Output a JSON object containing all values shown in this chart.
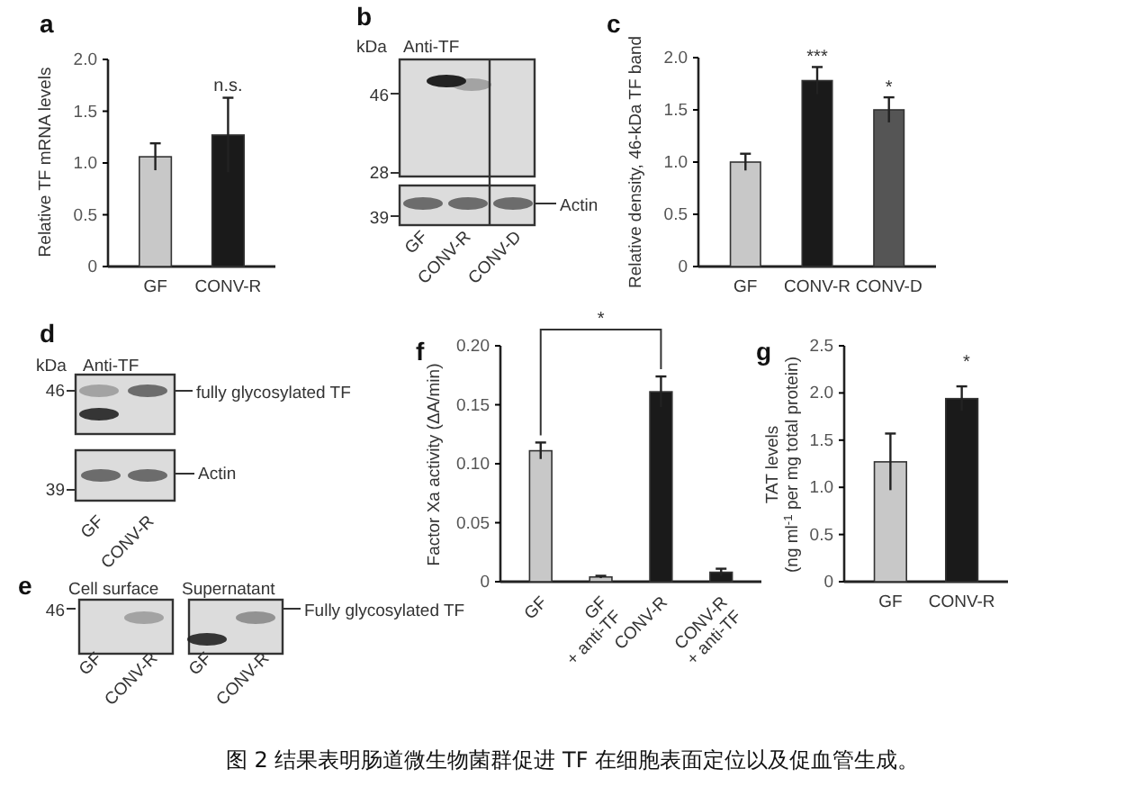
{
  "chart_data": [
    {
      "type": "bar",
      "title": "a",
      "ylabel": "Relative TF mRNA levels",
      "categories": [
        "GF",
        "CONV-R"
      ],
      "values": [
        1.06,
        1.27
      ],
      "errors": [
        0.13,
        0.36
      ],
      "colors": [
        "#c8c8c8",
        "#1a1a1a"
      ],
      "ylim": [
        0,
        2
      ],
      "yticks": [
        0,
        0.5,
        {
          "value": 1,
          "label": "1.0"
        },
        1.5,
        {
          "value": 2,
          "label": "2.0"
        }
      ],
      "annotations": [
        {
          "text": "n.s.",
          "x": "CONV-R",
          "y": 1.7
        }
      ]
    },
    {
      "type": "other",
      "title": "b",
      "annotations": [
        "kDa",
        "Anti-TF",
        "46",
        "28",
        "39",
        "Actin",
        "GF",
        "CONV-R",
        "CONV-D"
      ]
    },
    {
      "type": "bar",
      "title": "c",
      "ylabel": "Relative density, 46-kDa TF band",
      "categories": [
        "GF",
        "CONV-R",
        "CONV-D"
      ],
      "values": [
        1.0,
        1.78,
        1.5
      ],
      "errors": [
        0.08,
        0.13,
        0.12
      ],
      "colors": [
        "#c8c8c8",
        "#1a1a1a",
        "#555555"
      ],
      "ylim": [
        0,
        2
      ],
      "yticks": [
        0,
        {
          "value": 0.5,
          "label": "0.5"
        },
        {
          "value": 1,
          "label": "1.0"
        },
        {
          "value": 1.5,
          "label": "1.5"
        },
        {
          "value": 2,
          "label": "2.0"
        }
      ],
      "annotations": [
        {
          "text": "***",
          "x": "CONV-R",
          "y": 1.96
        },
        {
          "text": "*",
          "x": "CONV-D",
          "y": 1.66
        }
      ]
    },
    {
      "type": "other",
      "title": "d",
      "annotations": [
        "kDa",
        "Anti-TF",
        "46",
        "39",
        "fully glycosylated TF",
        "Actin",
        "GF",
        "CONV-R"
      ]
    },
    {
      "type": "other",
      "title": "e",
      "annotations": [
        "Cell surface",
        "Supernatant",
        "46",
        "Fully glycosylated TF",
        "GF",
        "CONV-R",
        "GF",
        "CONV-R"
      ]
    },
    {
      "type": "bar",
      "title": "f",
      "ylabel": "Factor Xa activity (ΔA/min)",
      "categories": [
        "GF",
        "GF\n+ anti-TF",
        "CONV-R",
        "CONV-R\n+ anti-TF"
      ],
      "values": [
        0.111,
        0.004,
        0.161,
        0.008
      ],
      "errors": [
        0.007,
        0.001,
        0.013,
        0.003
      ],
      "colors": [
        "#c8c8c8",
        "#c8c8c8",
        "#1a1a1a",
        "#1a1a1a"
      ],
      "ylim": [
        0,
        0.2
      ],
      "yticks": [
        0,
        {
          "value": 0.05,
          "label": "0.05"
        },
        {
          "value": 0.1,
          "label": "0.10"
        },
        {
          "value": 0.15,
          "label": "0.15"
        },
        {
          "value": 0.2,
          "label": "0.20"
        }
      ],
      "annotations": [
        "*"
      ]
    },
    {
      "type": "bar",
      "title": "g",
      "ylabel": "TAT levels\n(ng ml$^{-1}$ per mg total protein)",
      "categories": [
        "GF",
        "CONV-R"
      ],
      "values": [
        1.27,
        1.94
      ],
      "errors": [
        0.3,
        0.13
      ],
      "colors": [
        "#c8c8c8",
        "#1a1a1a"
      ],
      "ylim": [
        0,
        2.5
      ],
      "yticks": [
        0,
        {
          "value": 0.5,
          "label": "0.5"
        },
        {
          "value": 1,
          "label": "1.0"
        },
        {
          "value": 1.5,
          "label": "1.5"
        },
        {
          "value": 2,
          "label": "2.0"
        },
        {
          "value": 2.5,
          "label": "2.5"
        }
      ],
      "annotations": [
        "*"
      ]
    },
    {
      "type": "other",
      "annotations": [
        "图 2 结果表明肠道微生物菌群促进 TF 在细胞表面定位以及促血管生成。"
      ]
    }
  ]
}
